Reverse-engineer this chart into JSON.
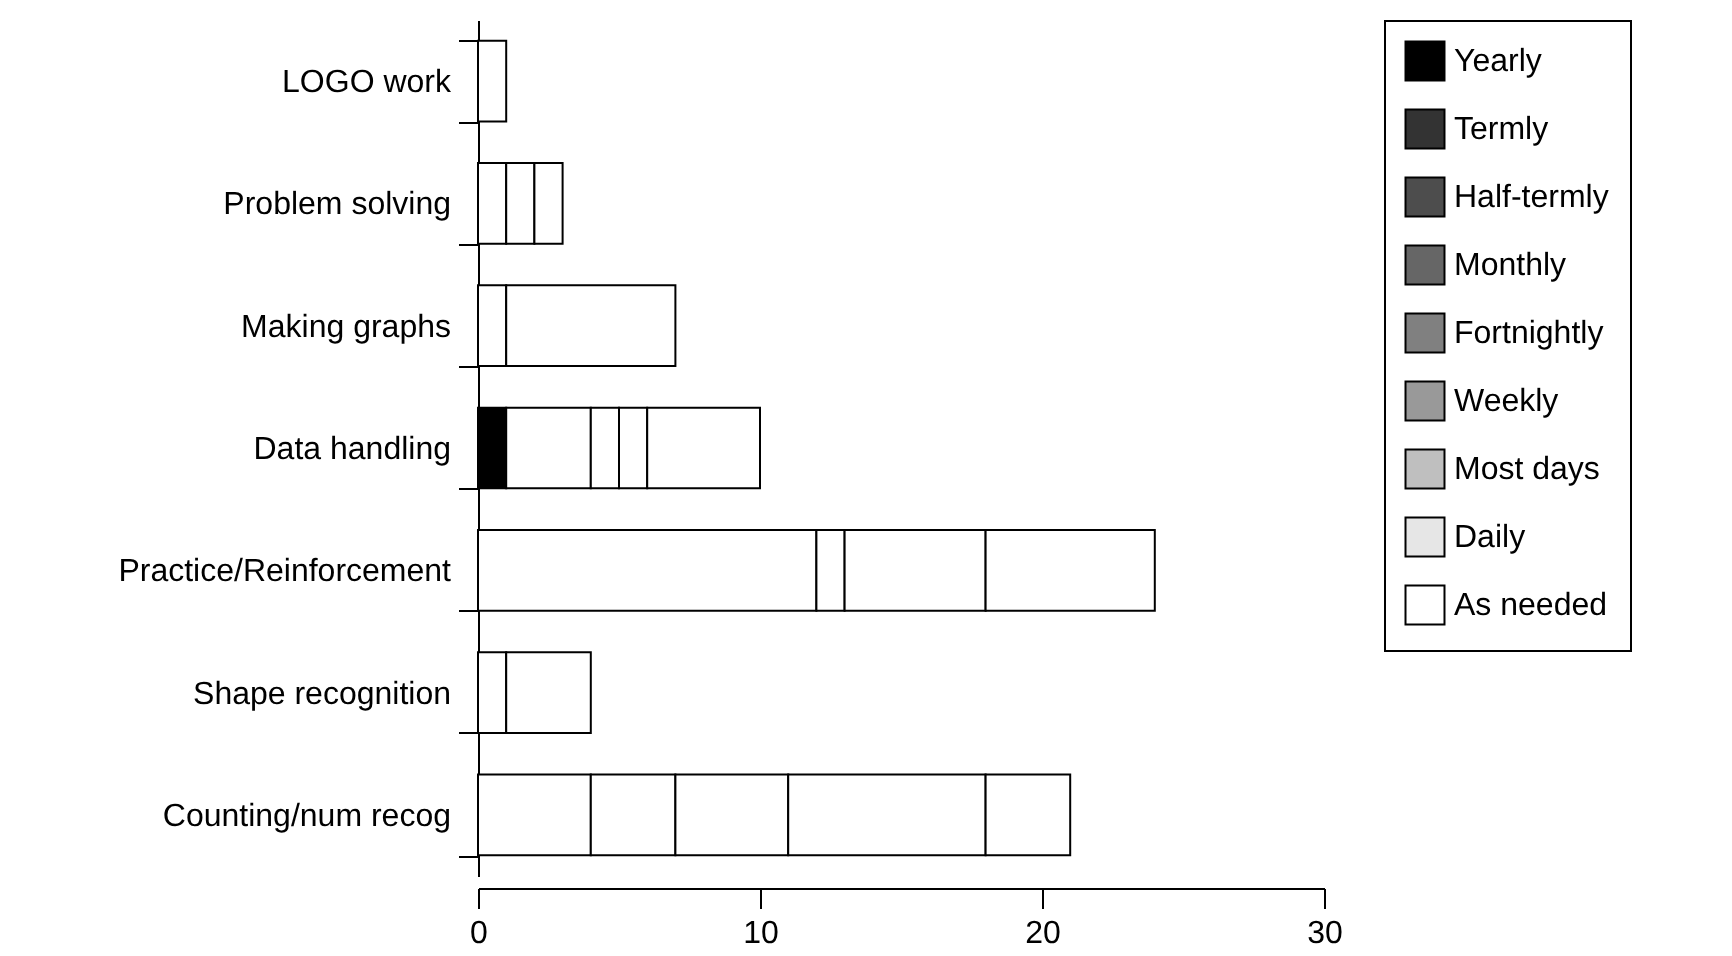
{
  "chart_data": {
    "type": "bar",
    "orientation": "horizontal",
    "stacked": true,
    "categories": [
      "LOGO work",
      "Problem solving",
      "Making graphs",
      "Data handling",
      "Practice/Reinforcement",
      "Shape recognition",
      "Counting/num recog"
    ],
    "series": [
      {
        "name": "Yearly",
        "color": "#000000",
        "values": [
          null,
          null,
          null,
          1,
          null,
          null,
          null
        ]
      },
      {
        "name": "Termly",
        "color": "#333333",
        "values": [
          null,
          null,
          null,
          null,
          null,
          null,
          null
        ]
      },
      {
        "name": "Half-termly",
        "color": "#4d4d4d",
        "values": [
          null,
          null,
          null,
          null,
          null,
          null,
          null
        ]
      },
      {
        "name": "Monthly",
        "color": "#666666",
        "values": [
          null,
          null,
          null,
          null,
          null,
          null,
          null
        ]
      },
      {
        "name": "Fortnightly",
        "color": "#808080",
        "values": [
          null,
          null,
          null,
          null,
          null,
          null,
          4
        ],
        "colors": [
          null,
          null,
          null,
          null,
          null,
          null,
          "#ffffff"
        ]
      },
      {
        "name": "Weekly",
        "color": "#999999",
        "values": [
          null,
          null,
          null,
          3,
          12,
          null,
          3
        ],
        "colors": [
          null,
          null,
          null,
          "#ffffff",
          "#ffffff",
          null,
          "#ffffff"
        ]
      },
      {
        "name": "Most days",
        "color": "#bfbfbf",
        "values": [
          null,
          1,
          null,
          1,
          1,
          null,
          4
        ],
        "colors": [
          null,
          "#ffffff",
          null,
          "#ffffff",
          "#ffffff",
          null,
          "#ffffff"
        ]
      },
      {
        "name": "Daily",
        "color": "#e6e6e6",
        "values": [
          null,
          1,
          1,
          1,
          5,
          1,
          7
        ],
        "colors": [
          null,
          "#ffffff",
          "#ffffff",
          "#ffffff",
          "#ffffff",
          "#ffffff",
          "#ffffff"
        ]
      },
      {
        "name": "As needed",
        "color": "#ffffff",
        "values": [
          1,
          1,
          6,
          4,
          6,
          3,
          3
        ]
      }
    ],
    "xlim": [
      0,
      30
    ],
    "xticks": [
      0,
      10,
      20,
      30
    ],
    "legend": "top right"
  }
}
